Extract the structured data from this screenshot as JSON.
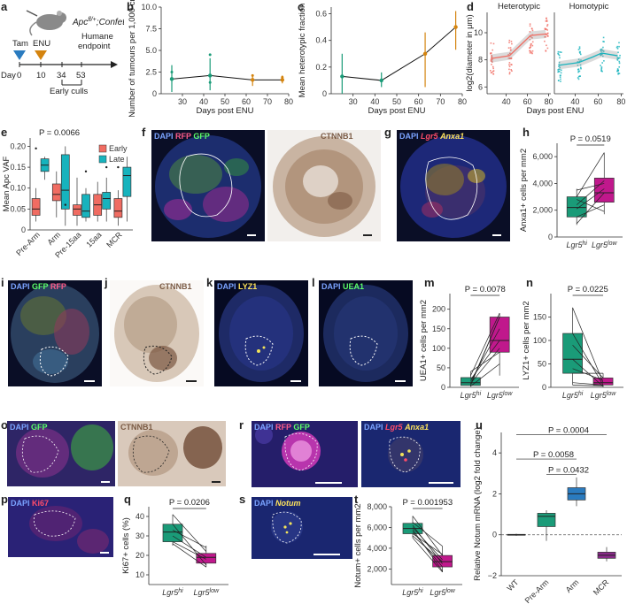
{
  "panels": {
    "a": {
      "label": "a",
      "genotype": "Apcfl/+;Confettifl",
      "genotype_parts": [
        "Apc",
        "fl/+",
        ";",
        "Confetti",
        "fl"
      ],
      "tam": "Tam",
      "enu": "ENU",
      "humane": "Humane",
      "endpoint": "endpoint",
      "day_label": "Day",
      "days": [
        "0",
        "10",
        "34",
        "53"
      ],
      "early_culls": "Early culls"
    },
    "b": {
      "label": "b"
    },
    "c": {
      "label": "c"
    },
    "d": {
      "label": "d",
      "title_left": "Heterotypic",
      "title_right": "Homotypic"
    },
    "e": {
      "label": "e",
      "pvalue": "P = 0.0066"
    },
    "f": {
      "label": "f",
      "stain_left": [
        "DAPI",
        "RFP",
        "GFP"
      ],
      "stain_right": "CTNNB1"
    },
    "g": {
      "label": "g",
      "stain": [
        "DAPI",
        "Lgr5",
        "Anxa1"
      ]
    },
    "h": {
      "label": "h",
      "pvalue": "P = 0.0519"
    },
    "i": {
      "label": "i",
      "stain": [
        "DAPI",
        "GFP",
        "RFP"
      ]
    },
    "j": {
      "label": "j",
      "stain": "CTNNB1"
    },
    "k": {
      "label": "k",
      "stain": [
        "DAPI",
        "LYZ1"
      ]
    },
    "l": {
      "label": "l",
      "stain": [
        "DAPI",
        "UEA1"
      ]
    },
    "m": {
      "label": "m",
      "pvalue": "P = 0.0078"
    },
    "n": {
      "label": "n",
      "pvalue": "P = 0.0225"
    },
    "o": {
      "label": "o",
      "stain_left": [
        "DAPI",
        "GFP"
      ],
      "stain_right": "CTNNB1"
    },
    "p": {
      "label": "p",
      "stain": [
        "DAPI",
        "Ki67"
      ]
    },
    "q": {
      "label": "q",
      "pvalue": "P = 0.0206"
    },
    "r": {
      "label": "r",
      "stain_left": [
        "DAPI",
        "RFP",
        "GFP"
      ],
      "stain_right": [
        "DAPI",
        "Lgr5",
        "Anxa1"
      ]
    },
    "s": {
      "label": "s",
      "stain": [
        "DAPI",
        "Notum"
      ]
    },
    "t": {
      "label": "t",
      "pvalue": "P = 0.001953"
    },
    "u": {
      "label": "u",
      "pvalues": [
        "P = 0.0004",
        "P = 0.0058",
        "P = 0.0432"
      ]
    }
  },
  "colors": {
    "green": "#1a9b78",
    "magenta": "#c0188c",
    "orange": "#d4840f",
    "teal_late": "#17b3bd",
    "salmon_early": "#f06c62",
    "blue_u": "#2a7bbf",
    "purple_u": "#8a2b8a"
  },
  "chart_data": [
    {
      "id": "b",
      "type": "line",
      "xlabel": "Days post ENU",
      "ylabel": "Number of tumours per 1,000 crypts",
      "xlim": [
        20,
        80
      ],
      "ylim": [
        0,
        10
      ],
      "xticks": [
        "30",
        "40",
        "50",
        "60",
        "70",
        "80"
      ],
      "yticks": [
        "0",
        "2.5",
        "5.0",
        "7.5",
        "10.0"
      ],
      "x": [
        25,
        43,
        63,
        77
      ],
      "y": [
        1.7,
        2.1,
        1.6,
        1.6
      ],
      "err_low": [
        0.2,
        0.4,
        0.9,
        1.2
      ],
      "err_high": [
        3.3,
        4.1,
        2.2,
        2.1
      ],
      "point_colors": [
        "green",
        "green",
        "orange",
        "orange"
      ],
      "extra_points": [
        [
          43,
          1.3
        ],
        [
          43,
          4.5
        ],
        [
          63,
          2.1
        ],
        [
          77,
          1.9
        ],
        [
          25,
          2.5
        ]
      ]
    },
    {
      "id": "c",
      "type": "line",
      "xlabel": "Days post ENU",
      "ylabel": "Mean heterotypic fraction",
      "xlim": [
        20,
        80
      ],
      "ylim": [
        0,
        0.65
      ],
      "xticks": [
        "30",
        "40",
        "50",
        "60",
        "70",
        "80"
      ],
      "yticks": [
        "0",
        "0.2",
        "0.4",
        "0.6"
      ],
      "x": [
        25,
        43,
        63,
        77
      ],
      "y": [
        0.13,
        0.1,
        0.3,
        0.5
      ],
      "err_low": [
        0.0,
        0.05,
        0.05,
        0.33
      ],
      "err_high": [
        0.3,
        0.16,
        0.46,
        0.62
      ],
      "point_colors": [
        "green",
        "green",
        "orange",
        "orange"
      ]
    },
    {
      "id": "d",
      "type": "scatter",
      "xlabel": "Days post ENU",
      "ylabel": "log2(diameter in μm)",
      "ylim": [
        5.5,
        11.5
      ],
      "yticks": [
        "6",
        "8",
        "10"
      ],
      "panels": [
        {
          "name": "Heterotypic",
          "xticks": [
            "40",
            "60",
            "80"
          ],
          "xlim": [
            22,
            82
          ],
          "x_centers": [
            26,
            43,
            63,
            77
          ],
          "trend": [
            [
              26,
              8.1
            ],
            [
              43,
              8.3
            ],
            [
              55,
              9.2
            ],
            [
              63,
              9.8
            ],
            [
              77,
              9.9
            ]
          ]
        },
        {
          "name": "Homotypic",
          "xticks": [
            "40",
            "60",
            "80"
          ],
          "xlim": [
            22,
            82
          ],
          "x_centers": [
            26,
            43,
            63,
            77
          ],
          "trend": [
            [
              26,
              7.6
            ],
            [
              43,
              7.8
            ],
            [
              55,
              8.2
            ],
            [
              63,
              8.5
            ],
            [
              77,
              8.3
            ]
          ]
        }
      ]
    },
    {
      "id": "e",
      "type": "box",
      "ylabel": "Mean Apc VAF",
      "ylim": [
        0,
        0.22
      ],
      "yticks": [
        "0",
        "0.05",
        "0.10",
        "0.15",
        "0.20"
      ],
      "categories": [
        "Pre-Arm",
        "Arm",
        "Pre-15aa",
        "15aa",
        "MCR"
      ],
      "legend": [
        "Early",
        "Late"
      ],
      "boxes": [
        {
          "cat": "Pre-Arm",
          "group": "Early",
          "min": 0.02,
          "q1": 0.035,
          "med": 0.05,
          "q3": 0.075,
          "max": 0.1
        },
        {
          "cat": "Pre-Arm",
          "group": "Late",
          "min": 0.12,
          "q1": 0.14,
          "med": 0.155,
          "q3": 0.17,
          "max": 0.175
        },
        {
          "cat": "Arm",
          "group": "Early",
          "min": 0.03,
          "q1": 0.07,
          "med": 0.085,
          "q3": 0.11,
          "max": 0.14
        },
        {
          "cat": "Arm",
          "group": "Late",
          "min": 0.01,
          "q1": 0.05,
          "med": 0.095,
          "q3": 0.18,
          "max": 0.2
        },
        {
          "cat": "Pre-15aa",
          "group": "Early",
          "min": 0.01,
          "q1": 0.035,
          "med": 0.05,
          "q3": 0.06,
          "max": 0.125
        },
        {
          "cat": "Pre-15aa",
          "group": "Late",
          "min": 0.02,
          "q1": 0.03,
          "med": 0.045,
          "q3": 0.085,
          "max": 0.1
        },
        {
          "cat": "15aa",
          "group": "Early",
          "min": 0.02,
          "q1": 0.035,
          "med": 0.06,
          "q3": 0.085,
          "max": 0.115
        },
        {
          "cat": "15aa",
          "group": "Late",
          "min": 0.02,
          "q1": 0.05,
          "med": 0.075,
          "q3": 0.09,
          "max": 0.125
        },
        {
          "cat": "MCR",
          "group": "Early",
          "min": 0.01,
          "q1": 0.03,
          "med": 0.045,
          "q3": 0.075,
          "max": 0.095
        },
        {
          "cat": "MCR",
          "group": "Late",
          "min": 0.02,
          "q1": 0.08,
          "med": 0.13,
          "q3": 0.15,
          "max": 0.175
        }
      ],
      "outliers": [
        [
          "Pre-Arm",
          "Early",
          0.195
        ],
        [
          "Arm",
          "Late",
          0.06
        ],
        [
          "Pre-15aa",
          "Late",
          0.14
        ],
        [
          "15aa",
          "Late",
          0.15
        ],
        [
          "MCR",
          "Early",
          0.15
        ]
      ]
    },
    {
      "id": "h",
      "type": "paired-box",
      "ylabel": "Anxa1+ cells per mm2",
      "ylim": [
        0,
        7000
      ],
      "yticks": [
        "0",
        "2,000",
        "4,000",
        "6,000"
      ],
      "categories": [
        "Lgr5hi",
        "Lgr5low"
      ],
      "boxes": [
        {
          "min": 900,
          "q1": 1500,
          "med": 2200,
          "q3": 3000,
          "max": 3600
        },
        {
          "min": 1700,
          "q1": 2600,
          "med": 3300,
          "q3": 4400,
          "max": 6300
        }
      ],
      "pairs": [
        [
          1000,
          3300
        ],
        [
          1500,
          2400
        ],
        [
          2100,
          3600
        ],
        [
          2400,
          4200
        ],
        [
          3000,
          6300
        ],
        [
          3500,
          4000
        ],
        [
          2800,
          1900
        ]
      ]
    },
    {
      "id": "m",
      "type": "paired-box",
      "ylabel": "UEA1+ cells per mm2",
      "ylim": [
        0,
        240
      ],
      "yticks": [
        "0",
        "50",
        "100",
        "150",
        "200"
      ],
      "categories": [
        "Lgr5hi",
        "Lgr5low"
      ],
      "boxes": [
        {
          "min": 2,
          "q1": 5,
          "med": 12,
          "q3": 25,
          "max": 40
        },
        {
          "min": 30,
          "q1": 90,
          "med": 120,
          "q3": 180,
          "max": 190
        }
      ],
      "pairs": [
        [
          3,
          60
        ],
        [
          5,
          180
        ],
        [
          10,
          100
        ],
        [
          15,
          150
        ],
        [
          20,
          120
        ],
        [
          30,
          190
        ],
        [
          40,
          90
        ],
        [
          8,
          180
        ]
      ]
    },
    {
      "id": "n",
      "type": "paired-box",
      "ylabel": "LYZ1+ cells per mm2",
      "ylim": [
        0,
        200
      ],
      "yticks": [
        "0",
        "50",
        "100",
        "150"
      ],
      "categories": [
        "Lgr5hi",
        "Lgr5low"
      ],
      "boxes": [
        {
          "min": 5,
          "q1": 30,
          "med": 60,
          "q3": 115,
          "max": 170
        },
        {
          "min": 1,
          "q1": 5,
          "med": 10,
          "q3": 20,
          "max": 30
        }
      ],
      "pairs": [
        [
          170,
          10
        ],
        [
          115,
          5
        ],
        [
          90,
          20
        ],
        [
          60,
          2
        ],
        [
          40,
          15
        ],
        [
          30,
          30
        ],
        [
          10,
          5
        ],
        [
          5,
          3
        ]
      ]
    },
    {
      "id": "q",
      "type": "paired-box",
      "ylabel": "Ki67+ cells (%)",
      "ylim": [
        5,
        45
      ],
      "yticks": [
        "10",
        "20",
        "30",
        "40"
      ],
      "categories": [
        "Lgr5hi",
        "Lgr5low"
      ],
      "boxes": [
        {
          "min": 25,
          "q1": 27,
          "med": 32,
          "q3": 36,
          "max": 41
        },
        {
          "min": 14,
          "q1": 16,
          "med": 19,
          "q3": 21,
          "max": 25
        }
      ],
      "pairs": [
        [
          41,
          22
        ],
        [
          36,
          15
        ],
        [
          33,
          24
        ],
        [
          30,
          19
        ],
        [
          27,
          18
        ],
        [
          26,
          14
        ]
      ]
    },
    {
      "id": "t",
      "type": "paired-box",
      "ylabel": "Notum+ cells per mm2",
      "ylim": [
        500,
        8000
      ],
      "yticks": [
        "2,000",
        "4,000",
        "6,000",
        "8,000"
      ],
      "categories": [
        "Lgr5hi",
        "Lgr5low"
      ],
      "boxes": [
        {
          "min": 5000,
          "q1": 5400,
          "med": 5900,
          "q3": 6400,
          "max": 7100
        },
        {
          "min": 1700,
          "q1": 2200,
          "med": 2700,
          "q3": 3300,
          "max": 4200
        }
      ],
      "pairs": [
        [
          7100,
          3300
        ],
        [
          6500,
          4200
        ],
        [
          6200,
          2500
        ],
        [
          6000,
          2900
        ],
        [
          5800,
          1800
        ],
        [
          5600,
          2200
        ],
        [
          5400,
          3400
        ],
        [
          5200,
          2700
        ],
        [
          5000,
          1700
        ]
      ]
    },
    {
      "id": "u",
      "type": "box",
      "ylabel": "Relative Notum mRNA (log2 fold change)",
      "ylim": [
        -2,
        5
      ],
      "yticks": [
        "−2",
        "0",
        "2",
        "4"
      ],
      "categories": [
        "WT",
        "Pre-Arm",
        "Arm",
        "MCR"
      ],
      "boxes": [
        {
          "min": -0.05,
          "q1": -0.02,
          "med": 0,
          "q3": 0.02,
          "max": 0.05
        },
        {
          "min": -0.3,
          "q1": 0.4,
          "med": 0.9,
          "q3": 1.05,
          "max": 1.2
        },
        {
          "min": 1.4,
          "q1": 1.7,
          "med": 2.0,
          "q3": 2.3,
          "max": 2.8
        },
        {
          "min": -1.3,
          "q1": -1.15,
          "med": -1.0,
          "q3": -0.85,
          "max": -0.6
        }
      ]
    }
  ]
}
